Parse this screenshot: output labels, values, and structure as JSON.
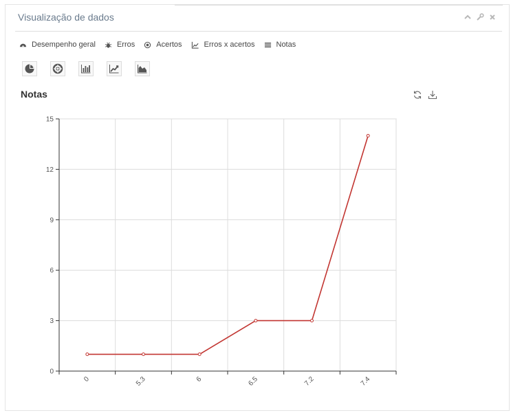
{
  "widget": {
    "title": "Visualização de dados"
  },
  "tabs": [
    {
      "label": "Desempenho geral",
      "icon": "dashboard-icon"
    },
    {
      "label": "Erros",
      "icon": "bug-icon"
    },
    {
      "label": "Acertos",
      "icon": "target-icon"
    },
    {
      "label": "Erros x acertos",
      "icon": "line-chart-icon"
    },
    {
      "label": "Notas",
      "icon": "list-icon"
    }
  ],
  "chart_types": [
    "pie-chart-icon",
    "donut-chart-icon",
    "bar-chart-icon",
    "line-chart-icon",
    "area-chart-icon"
  ],
  "chart_data": {
    "type": "line",
    "title": "Notas",
    "categories": [
      "0",
      "5.3",
      "6",
      "6.5",
      "7.2",
      "7.4"
    ],
    "values": [
      1,
      1,
      1,
      3,
      3,
      14
    ],
    "ylim": [
      0,
      15
    ],
    "yticks": [
      0,
      3,
      6,
      9,
      12,
      15
    ],
    "grid": true,
    "line_color": "#c23531"
  }
}
